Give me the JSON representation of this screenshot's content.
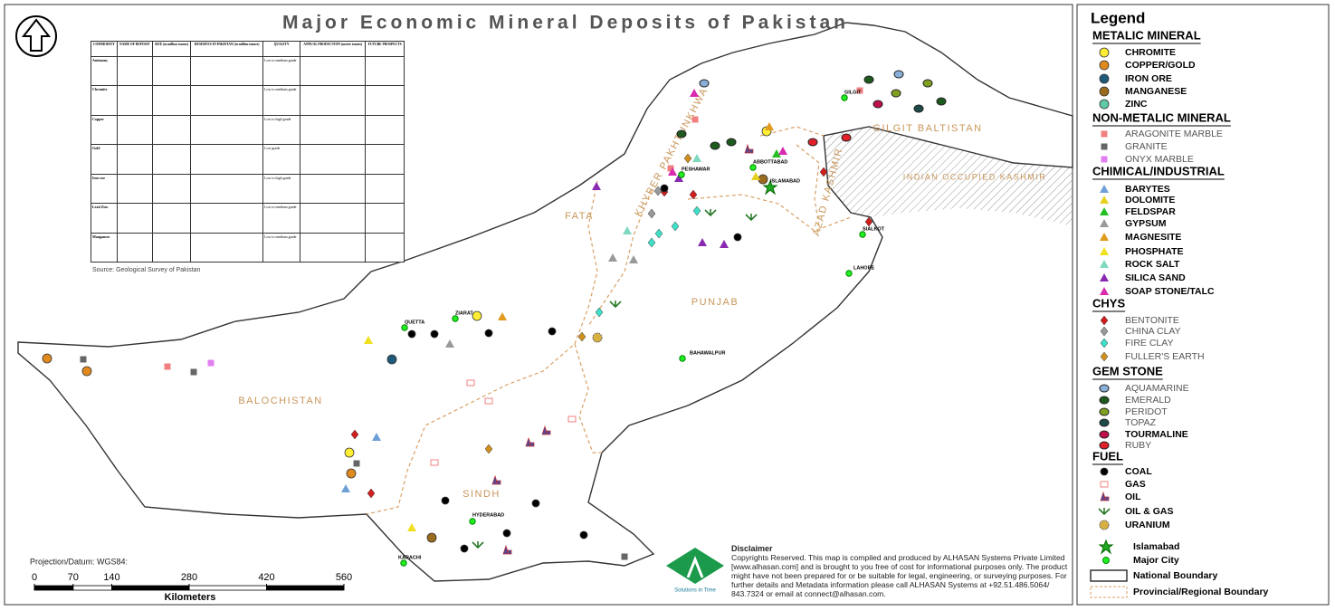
{
  "title": "Major Economic Mineral Deposits of Pakistan",
  "legend": {
    "title": "Legend",
    "sections": [
      {
        "heading": "METALIC MINERAL",
        "items": [
          "CHROMITE",
          "COPPER/GOLD",
          "IRON ORE",
          "MANGANESE",
          "ZINC"
        ]
      },
      {
        "heading": "NON-METALIC MINERAL",
        "items": [
          "ARAGONITE MARBLE",
          "GRANITE",
          "ONYX MARBLE"
        ]
      },
      {
        "heading": "CHIMICAL/INDUSTRIAL",
        "items": [
          "BARYTES",
          "DOLOMITE",
          "FELDSPAR",
          "GYPSUM",
          "MAGNESITE",
          "PHOSPHATE",
          "ROCK SALT",
          "SILICA SAND",
          "SOAP STONE/TALC"
        ]
      },
      {
        "heading": "CHYS",
        "items": [
          "BENTONITE",
          "CHINA CLAY",
          "FIRE CLAY",
          "FULLER'S EARTH"
        ]
      },
      {
        "heading": "GEM STONE",
        "items": [
          "AQUAMARINE",
          "EMERALD",
          "PERIDOT",
          "TOPAZ",
          "TOURMALINE",
          "RUBY"
        ]
      },
      {
        "heading": "FUEL",
        "items": [
          "COAL",
          "GAS",
          "OIL",
          "OIL & GAS",
          "URANIUM"
        ]
      }
    ],
    "extras": [
      "Islamabad",
      "Major City",
      "National Boundary",
      "Provincial/Regional Boundary"
    ]
  },
  "regions": [
    "BALOCHISTAN",
    "SINDH",
    "PUNJAB",
    "KHYBER PAKHTUNKHWA",
    "FATA",
    "GILGIT BALTISTAN",
    "AZAD KASHMIR",
    "INDIAN OCCUPIED KASHMIR"
  ],
  "cities": [
    "GILGIT",
    "PESHAWAR",
    "ABBOTTABAD",
    "ISLAMABAD",
    "SIALKOT",
    "LAHORE",
    "QUETTA",
    "ZIARAT",
    "BAHAWALPUR",
    "HYDERABAD",
    "KARACHI"
  ],
  "table": {
    "header": [
      "COMMODITY",
      "NAME OF DEPOSIT",
      "SIZE (in million tonnes)",
      "RESERVES IN PAKISTAN (in million tonnes)",
      "QUALITY",
      "ANNUAL PRODUCTION (metric tonnes)",
      "FUTURE PROSPECTS"
    ],
    "rows": [
      {
        "commodity": "Antimony",
        "quality": "Low to medium grade"
      },
      {
        "commodity": "Chromite",
        "quality": "Low to medium grade"
      },
      {
        "commodity": "Copper",
        "quality": "Low to high grade"
      },
      {
        "commodity": "Gold",
        "quality": "Low grade"
      },
      {
        "commodity": "Iron ore",
        "quality": "Low to high grade"
      },
      {
        "commodity": "Lead Zinc",
        "quality": "Low to medium grade"
      },
      {
        "commodity": "Manganese",
        "quality": "Low to medium grade"
      }
    ]
  },
  "source": "Source: Geological Survey of Pakistan",
  "projection": "Projection/Datum:  WGS84:",
  "scale": {
    "ticks": [
      0,
      70,
      140,
      280,
      420,
      560
    ],
    "unit": "Kilometers"
  },
  "logo": "Solutions in Time",
  "disclaimer": {
    "title": "Disclaimer",
    "text": "Copyrights Reserved. This map is compiled and produced by ALHASAN Systems Private Limited [www.alhasan.com] and is brought to you free of cost for informational purposes only. The product might have not been prepared for or be suitable for legal, engineering, or surveying purposes. For further details and Metadata information please call ALHASAN Systems at +92.51.486.5064/ 843.7324 or email at connect@alhasan.com."
  }
}
